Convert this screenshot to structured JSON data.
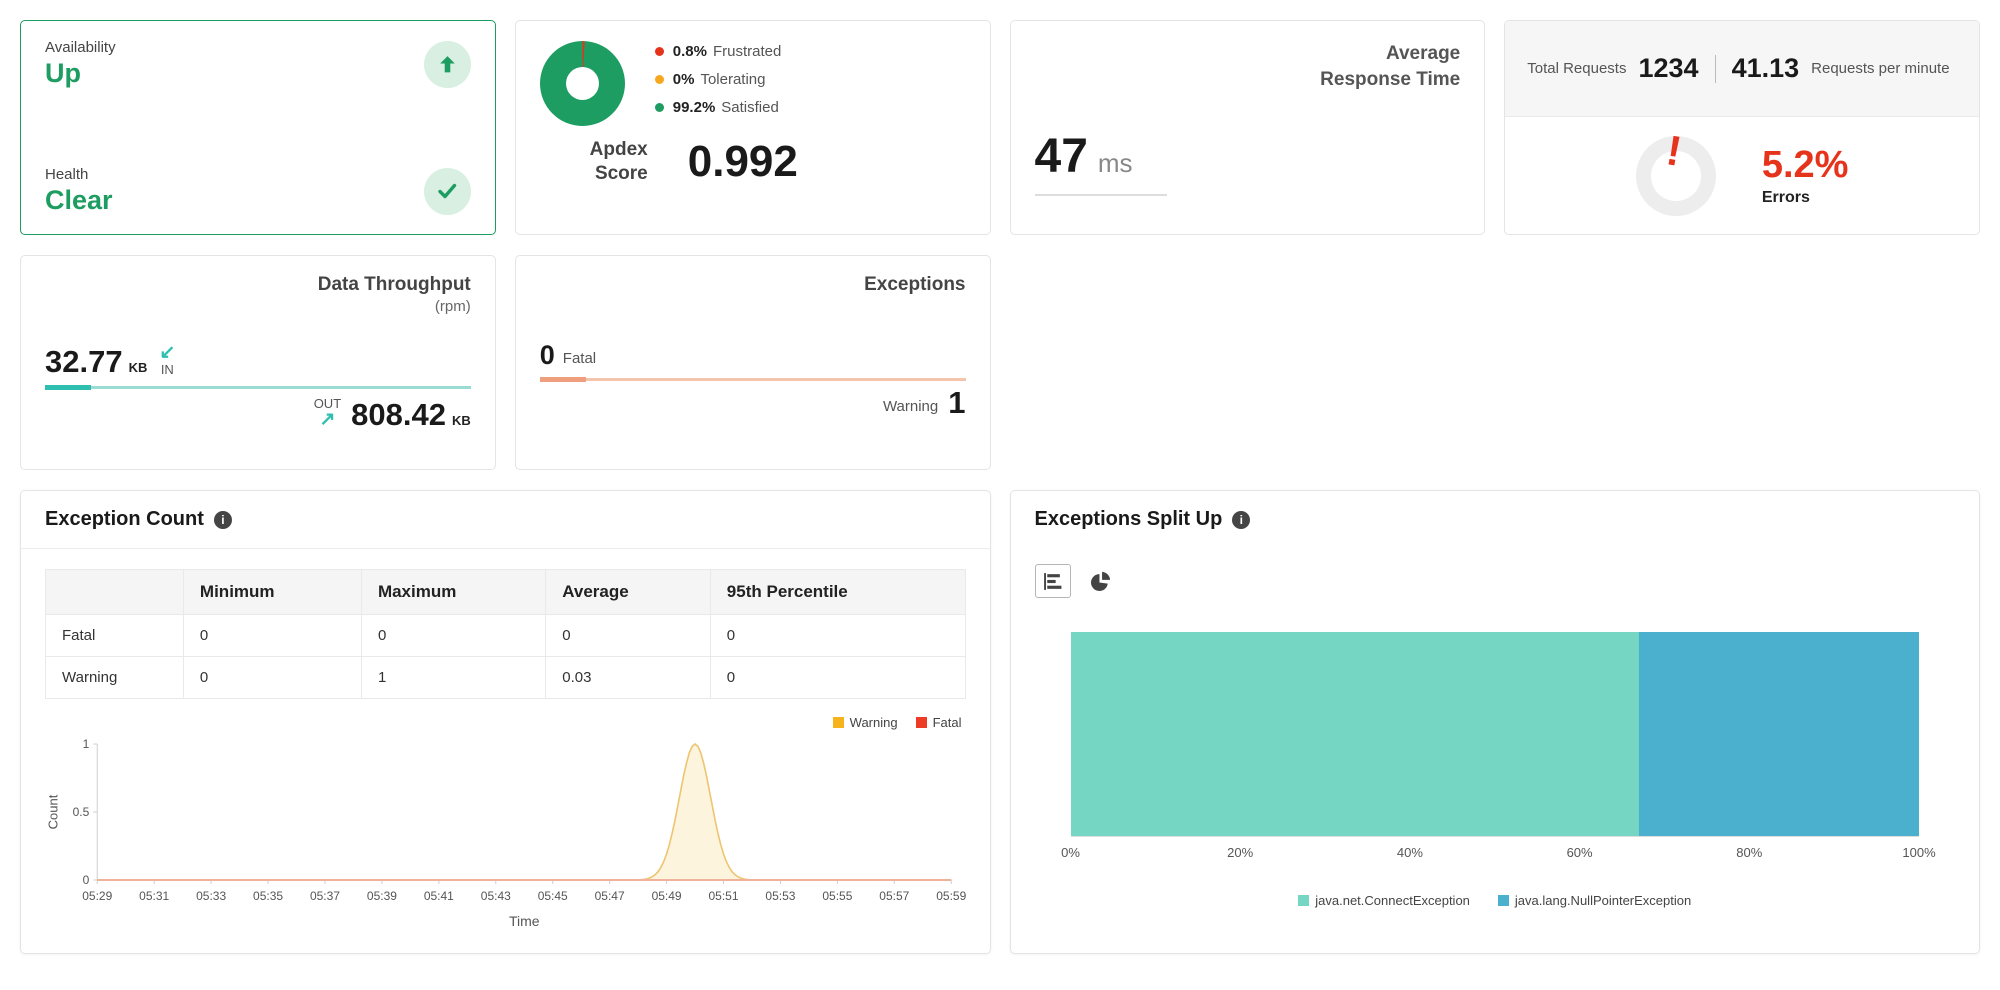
{
  "colors": {
    "green": "#1d9d61",
    "light_green": "#d8efe2",
    "red": "#e6331c",
    "orange": "#f7a71b",
    "teal": "#2ebfb1",
    "teal_light": "#9adbd3",
    "salmon": "#f4c4ac",
    "salmon_dark": "#ef9f7d"
  },
  "status_card": {
    "availability_label": "Availability",
    "availability_value": "Up",
    "health_label": "Health",
    "health_value": "Clear"
  },
  "apdex_card": {
    "legend": [
      {
        "pct": "0.8%",
        "label": "Frustrated",
        "color": "#e6331c"
      },
      {
        "pct": "0%",
        "label": "Tolerating",
        "color": "#f7a71b"
      },
      {
        "pct": "99.2%",
        "label": "Satisfied",
        "color": "#1d9d61"
      }
    ],
    "label": "Apdex Score",
    "score": "0.992"
  },
  "response_card": {
    "title": "Average Response Time",
    "value": "47",
    "unit": "ms"
  },
  "requests_card": {
    "total_label": "Total Requests",
    "total_value": "1234",
    "rate_value": "41.13",
    "rate_label": "Requests per minute",
    "error_pct": "5.2%",
    "error_label": "Errors"
  },
  "throughput_card": {
    "title": "Data Throughput",
    "subtitle": "(rpm)",
    "in_value": "32.77",
    "in_unit": "KB",
    "in_label": "IN",
    "out_label": "OUT",
    "out_value": "808.42",
    "out_unit": "KB"
  },
  "exceptions_card": {
    "title": "Exceptions",
    "fatal_value": "0",
    "fatal_label": "Fatal",
    "warning_label": "Warning",
    "warning_value": "1"
  },
  "exception_count_card": {
    "title": "Exception Count",
    "table": {
      "headers": [
        "",
        "Minimum",
        "Maximum",
        "Average",
        "95th Percentile"
      ],
      "rows": [
        {
          "name": "Fatal",
          "values": [
            "0",
            "0",
            "0",
            "0"
          ]
        },
        {
          "name": "Warning",
          "values": [
            "0",
            "1",
            "0.03",
            "0"
          ]
        }
      ]
    }
  },
  "split_card": {
    "title": "Exceptions Split Up"
  },
  "chart_data": [
    {
      "type": "line",
      "title": "Exception Count",
      "xlabel": "Time",
      "ylabel": "Count",
      "ylim": [
        0,
        1
      ],
      "yticks": [
        0,
        0.5,
        1
      ],
      "tick_every": 2,
      "x": [
        "05:29",
        "05:30",
        "05:31",
        "05:32",
        "05:33",
        "05:34",
        "05:35",
        "05:36",
        "05:37",
        "05:38",
        "05:39",
        "05:40",
        "05:41",
        "05:42",
        "05:43",
        "05:44",
        "05:45",
        "05:46",
        "05:47",
        "05:48",
        "05:49",
        "05:50",
        "05:51",
        "05:52",
        "05:53",
        "05:54",
        "05:55",
        "05:56",
        "05:57",
        "05:58",
        "05:59"
      ],
      "series": [
        {
          "name": "Warning",
          "values": [
            0,
            0,
            0,
            0,
            0,
            0,
            0,
            0,
            0,
            0,
            0,
            0,
            0,
            0,
            0,
            0,
            0,
            0,
            0,
            0,
            0,
            1,
            0,
            0,
            0,
            0,
            0,
            0,
            0,
            0,
            0
          ],
          "line_color": "#edc46f",
          "fill_color": "#fdf4dd",
          "legend_color": "#f6b31b"
        },
        {
          "name": "Fatal",
          "values": [
            0,
            0,
            0,
            0,
            0,
            0,
            0,
            0,
            0,
            0,
            0,
            0,
            0,
            0,
            0,
            0,
            0,
            0,
            0,
            0,
            0,
            0,
            0,
            0,
            0,
            0,
            0,
            0,
            0,
            0,
            0
          ],
          "line_color": "#f0b29b",
          "fill_color": null,
          "legend_color": "#ee3b25"
        }
      ]
    },
    {
      "type": "bar",
      "orientation": "horizontal-stacked",
      "xlim": [
        0,
        100
      ],
      "x_ticks": [
        "0%",
        "20%",
        "40%",
        "60%",
        "80%",
        "100%"
      ],
      "series": [
        {
          "name": "java.net.ConnectException",
          "value": 67,
          "color": "#74d6c3"
        },
        {
          "name": "java.lang.NullPointerException",
          "value": 33,
          "color": "#4ab0cd"
        }
      ]
    }
  ]
}
